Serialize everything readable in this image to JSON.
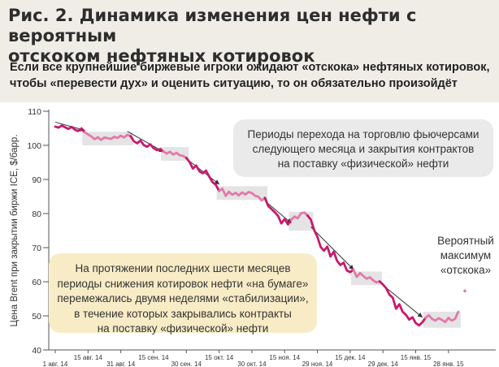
{
  "header": {
    "title_line1": "Рис. 2. Динамика изменения цен нефти с вероятным",
    "title_line2": "отскоком нефтяных котировок",
    "subtitle_line1": "Если все крупнейшие биржевые игроки ожидают «отскока» нефтяных котировок,",
    "subtitle_line2": "чтобы «перевести дух» и оценить ситуацию, то он обязательно произойдёт"
  },
  "annotations": {
    "transition_note": [
      "Периоды перехода на торговлю фьючерсами",
      "следующего месяца и закрытия контрактов",
      "на поставку «физической» нефти"
    ],
    "decline_note": [
      "На протяжении последних шести месяцев",
      "периоды снижения котировок нефти «на бумаге»",
      "перемежались двумя неделями «стабилизации»,",
      "в течение которых закрывались контракты",
      "на поставку «физической» нефти"
    ],
    "rebound_note": [
      "Вероятный",
      "максимум",
      "«отскока»"
    ]
  },
  "colors": {
    "paper_price": "#c8196e",
    "physical_period": "#e27aa8",
    "rebound": "#e27aa8",
    "highlight_box": "#e4e4e4",
    "background": "#efede6"
  },
  "chart_data": {
    "type": "line",
    "ylabel": "Цена Brent при закрытии биржи ICE, $/барр.",
    "xlabel": "",
    "ylim": [
      40,
      110
    ],
    "yticks": [
      40,
      50,
      60,
      70,
      80,
      90,
      100,
      110
    ],
    "x_ticks": [
      {
        "label": "1 авг. 14",
        "row": "bottom"
      },
      {
        "label": "15 авг. 14",
        "row": "top"
      },
      {
        "label": "31 авг. 14",
        "row": "bottom"
      },
      {
        "label": "15 сен. 14",
        "row": "top"
      },
      {
        "label": "30 сен. 14",
        "row": "bottom"
      },
      {
        "label": "15 окт. 14",
        "row": "top"
      },
      {
        "label": "30 окт. 14",
        "row": "bottom"
      },
      {
        "label": "15 ноя. 14",
        "row": "top"
      },
      {
        "label": "29 ноя. 14",
        "row": "bottom"
      },
      {
        "label": "15 дек. 14",
        "row": "top"
      },
      {
        "label": "29 дек. 14",
        "row": "bottom"
      },
      {
        "label": "15 янв. 15",
        "row": "top"
      },
      {
        "label": "28 янв. 15",
        "row": "bottom"
      }
    ],
    "x_tick_index": [
      0,
      10,
      20,
      30,
      40,
      50,
      60,
      70,
      80,
      90,
      100,
      110,
      120
    ],
    "series": [
      {
        "values": [
          105.5,
          105.2,
          105.8,
          105.3,
          104.8,
          105.4,
          104.6,
          104.2,
          104.9,
          103.8,
          103.2,
          102.6,
          101.8,
          102.4,
          101.6,
          102.3,
          102.1,
          101.9,
          102.5,
          102.2,
          102.8,
          102.3,
          103.1,
          102.7,
          101.2,
          100.6,
          101.4,
          100.1,
          99.6,
          100.3,
          99.2,
          98.6,
          98.9,
          98.2,
          97.6,
          98.1,
          97.3,
          97.8,
          97.1,
          96.9,
          96.3,
          95.1,
          93.2,
          94.1,
          92.4,
          91.8,
          92.6,
          90.8,
          89.2,
          88.4,
          86.6,
          87.3,
          85.2,
          86.4,
          85.5,
          86.1,
          85.3,
          86.2,
          85.6,
          86.3,
          86.0,
          85.2,
          84.9,
          83.8,
          84.6,
          82.2,
          81.3,
          80.4,
          79.3,
          77.1,
          78.4,
          76.8,
          78.2,
          79.1,
          78.6,
          80.1,
          80.3,
          79.4,
          78.2,
          75.2,
          73.1,
          70.2,
          69.1,
          70.3,
          67.4,
          68.8,
          66.1,
          64.9,
          65.6,
          63.3,
          62.8,
          63.6,
          61.4,
          62.6,
          61.7,
          60.9,
          61.3,
          60.4,
          59.8,
          60.1,
          59.2,
          58.1,
          56.2,
          55.3,
          52.1,
          53.4,
          51.2,
          50.3,
          48.9,
          49.6,
          47.9,
          47.2,
          48.1,
          49.4,
          50.2,
          49.1,
          48.6,
          49.3,
          48.8,
          48.2,
          49.4,
          48.6,
          49.1,
          51.2,
          54.3,
          57.3
        ],
        "segments": [
          {
            "from": 0,
            "to": 9,
            "style": "paper"
          },
          {
            "from": 9,
            "to": 23,
            "style": "physical"
          },
          {
            "from": 23,
            "to": 33,
            "style": "paper"
          },
          {
            "from": 33,
            "to": 40,
            "style": "physical"
          },
          {
            "from": 40,
            "to": 50,
            "style": "paper"
          },
          {
            "from": 50,
            "to": 64,
            "style": "physical"
          },
          {
            "from": 64,
            "to": 72,
            "style": "paper"
          },
          {
            "from": 72,
            "to": 77,
            "style": "physical"
          },
          {
            "from": 77,
            "to": 91,
            "style": "paper"
          },
          {
            "from": 91,
            "to": 99,
            "style": "physical"
          },
          {
            "from": 99,
            "to": 113,
            "style": "paper"
          },
          {
            "from": 113,
            "to": 123,
            "style": "rebound"
          }
        ]
      }
    ],
    "highlight_periods": [
      {
        "x": [
          9,
          23
        ],
        "y": [
          100,
          104
        ]
      },
      {
        "x": [
          33,
          40
        ],
        "y": [
          95.5,
          99.5
        ]
      },
      {
        "x": [
          50,
          64
        ],
        "y": [
          84,
          88
        ]
      },
      {
        "x": [
          72,
          78
        ],
        "y": [
          75,
          80.5
        ]
      },
      {
        "x": [
          91,
          99
        ],
        "y": [
          59,
          63
        ]
      },
      {
        "x": [
          113,
          123
        ],
        "y": [
          46.5,
          51.2
        ]
      }
    ],
    "trend_arrows": [
      {
        "from": [
          0,
          106.8
        ],
        "to": [
          9,
          104.4
        ]
      },
      {
        "from": [
          22,
          104.1
        ],
        "to": [
          33,
          98.1
        ]
      },
      {
        "from": [
          40,
          96.1
        ],
        "to": [
          50,
          88.6
        ]
      },
      {
        "from": [
          64,
          83.7
        ],
        "to": [
          72,
          77.2
        ]
      },
      {
        "from": [
          78,
          76.1
        ],
        "to": [
          91,
          63.6
        ]
      },
      {
        "from": [
          99,
          59.8
        ],
        "to": [
          112,
          49.6
        ]
      }
    ]
  }
}
